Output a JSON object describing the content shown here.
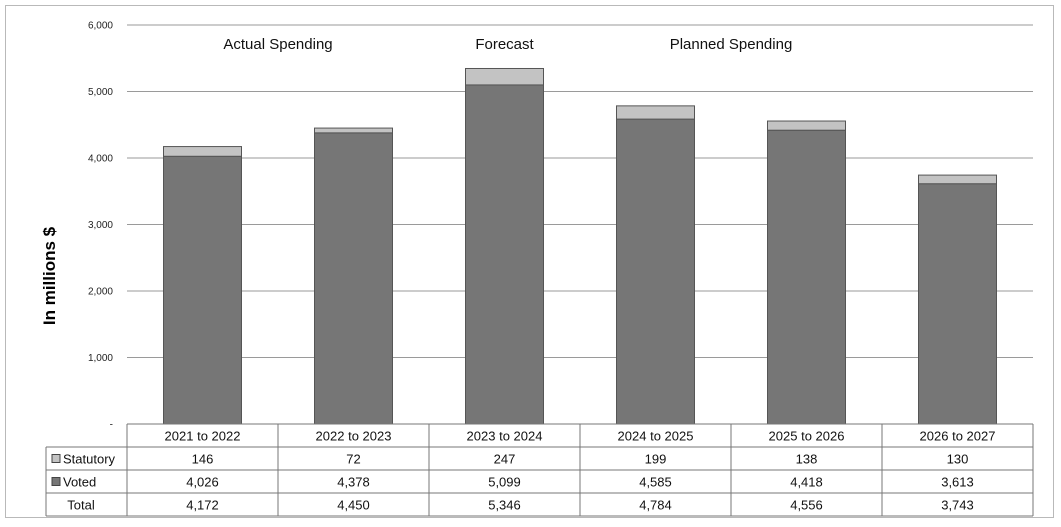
{
  "chart_data": {
    "type": "bar",
    "stacked": true,
    "ylabel": "In millions $",
    "ylim": [
      0,
      6000
    ],
    "yticks": [
      {
        "value": 0,
        "label": "-"
      },
      {
        "value": 1000,
        "label": "1,000"
      },
      {
        "value": 2000,
        "label": "2,000"
      },
      {
        "value": 3000,
        "label": "3,000"
      },
      {
        "value": 4000,
        "label": "4,000"
      },
      {
        "value": 5000,
        "label": "5,000"
      },
      {
        "value": 6000,
        "label": "6,000"
      }
    ],
    "grid": true,
    "categories": [
      "2021 to 2022",
      "2022 to 2023",
      "2023 to 2024",
      "2024 to 2025",
      "2025 to 2026",
      "2026 to 2027"
    ],
    "period_labels": [
      {
        "text": "Actual Spending",
        "category_index": 0.5
      },
      {
        "text": "Forecast",
        "category_index": 2
      },
      {
        "text": "Planned Spending",
        "category_index": 3.5
      }
    ],
    "series": [
      {
        "name": "Voted",
        "color": "#767676",
        "values": [
          4026,
          4378,
          5099,
          4585,
          4418,
          3613
        ],
        "labels": [
          "4,026",
          "4,378",
          "5,099",
          "4,585",
          "4,418",
          "3,613"
        ]
      },
      {
        "name": "Statutory",
        "color": "#c3c3c3",
        "values": [
          146,
          72,
          247,
          199,
          138,
          130
        ],
        "labels": [
          "146",
          "72",
          "247",
          "199",
          "138",
          "130"
        ]
      }
    ],
    "total": {
      "name": "Total",
      "values": [
        4172,
        4450,
        5346,
        4784,
        4556,
        3743
      ],
      "labels": [
        "4,172",
        "4,450",
        "5,346",
        "4,784",
        "4,556",
        "3,743"
      ]
    },
    "table_row_order": [
      "Statutory",
      "Voted",
      "Total"
    ]
  }
}
